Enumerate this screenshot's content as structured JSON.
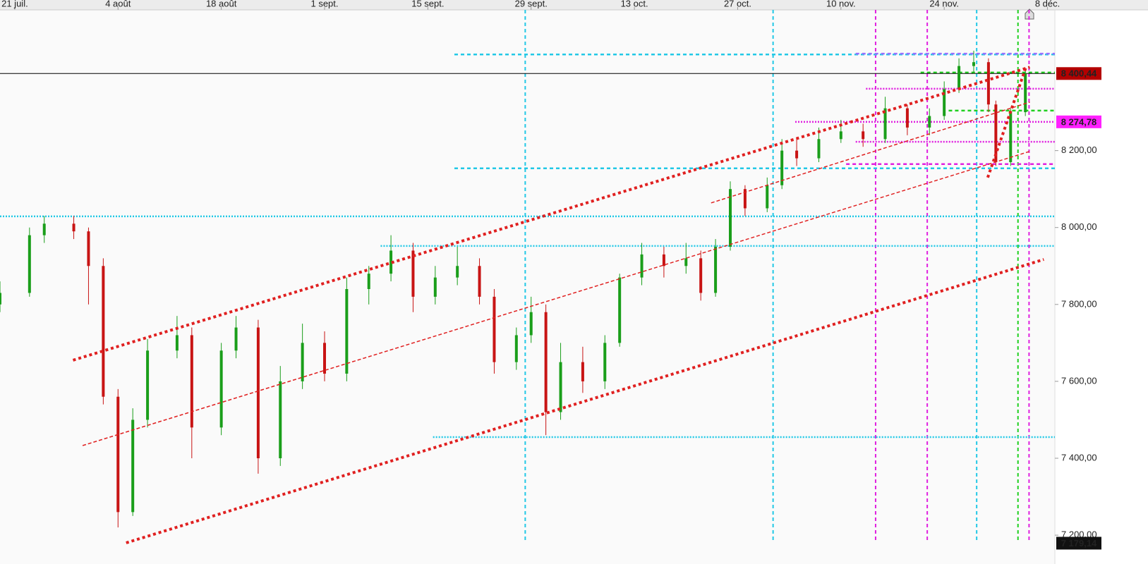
{
  "chart_data": {
    "type": "candlestick",
    "x": [
      -2,
      2,
      4,
      8,
      10,
      12,
      14,
      16,
      18,
      22,
      24,
      28,
      30,
      33,
      36,
      39,
      42,
      45,
      48,
      51,
      54,
      57,
      60,
      63,
      65,
      68,
      70,
      72,
      74,
      77,
      80,
      82,
      85,
      88,
      91,
      93,
      95,
      97,
      99,
      102,
      104,
      106,
      109,
      112,
      115,
      118,
      121,
      124,
      126,
      128,
      130,
      132,
      133,
      135,
      137
    ],
    "open": [
      7800,
      7830,
      7980,
      8010,
      7990,
      7900,
      7560,
      7260,
      7500,
      7680,
      7720,
      7480,
      7680,
      7740,
      7400,
      7600,
      7700,
      7620,
      7840,
      7880,
      7940,
      7820,
      7870,
      7900,
      7820,
      7650,
      7720,
      7780,
      7520,
      7650,
      7600,
      7700,
      7870,
      7930,
      7900,
      7920,
      7830,
      7950,
      8100,
      8050,
      8110,
      8200,
      8180,
      8230,
      8250,
      8230,
      8310,
      8260,
      8290,
      8360,
      8420,
      8430,
      8320,
      8170,
      8300
    ],
    "high": [
      7860,
      8000,
      8030,
      8030,
      8000,
      7920,
      7580,
      7530,
      7710,
      7770,
      7740,
      7700,
      7770,
      7760,
      7640,
      7750,
      7730,
      7870,
      7900,
      7980,
      7960,
      7900,
      7950,
      7920,
      7840,
      7740,
      7820,
      7800,
      7700,
      7690,
      7720,
      7880,
      7960,
      7950,
      7960,
      7940,
      7970,
      8120,
      8110,
      8130,
      8230,
      8230,
      8260,
      8280,
      8270,
      8340,
      8320,
      8310,
      8380,
      8440,
      8460,
      8440,
      8330,
      8310,
      8410
    ],
    "low": [
      7780,
      7820,
      7960,
      7970,
      7800,
      7540,
      7220,
      7250,
      7480,
      7660,
      7400,
      7460,
      7660,
      7360,
      7380,
      7580,
      7600,
      7600,
      7800,
      7860,
      7780,
      7800,
      7850,
      7800,
      7620,
      7630,
      7700,
      7460,
      7500,
      7570,
      7580,
      7690,
      7850,
      7870,
      7880,
      7810,
      7820,
      7940,
      8030,
      8040,
      8100,
      8160,
      8170,
      8220,
      8210,
      8220,
      8240,
      8240,
      8280,
      8350,
      8400,
      8300,
      8160,
      8160,
      8290
    ],
    "close": [
      7830,
      7980,
      8010,
      7990,
      7900,
      7560,
      7260,
      7500,
      7680,
      7720,
      7480,
      7680,
      7740,
      7400,
      7600,
      7700,
      7620,
      7840,
      7880,
      7940,
      7820,
      7870,
      7900,
      7820,
      7650,
      7720,
      7780,
      7520,
      7650,
      7600,
      7700,
      7870,
      7930,
      7900,
      7920,
      7830,
      7950,
      8100,
      8050,
      8110,
      8200,
      8180,
      8230,
      8250,
      8230,
      8310,
      8260,
      8290,
      8360,
      8420,
      8430,
      8320,
      8170,
      8300,
      8400
    ],
    "up_color": "#1a9e1a",
    "down_color": "#c81414",
    "xlim": [
      -2,
      141
    ],
    "ylim": [
      7180,
      8566
    ],
    "xticks": [
      {
        "value": 0,
        "label": "21 juil."
      },
      {
        "value": 14,
        "label": "4 août"
      },
      {
        "value": 28,
        "label": "18 août"
      },
      {
        "value": 42,
        "label": "1 sept."
      },
      {
        "value": 56,
        "label": "15 sept."
      },
      {
        "value": 70,
        "label": "29 sept."
      },
      {
        "value": 84,
        "label": "13 oct."
      },
      {
        "value": 98,
        "label": "27 oct."
      },
      {
        "value": 112,
        "label": "10 nov."
      },
      {
        "value": 126,
        "label": "24 nov."
      },
      {
        "value": 140,
        "label": "8 déc."
      }
    ],
    "yticks": [
      {
        "value": 8200,
        "label": "8 200,00"
      },
      {
        "value": 8000,
        "label": "8 000,00"
      },
      {
        "value": 7800,
        "label": "7 800,00"
      },
      {
        "value": 7600,
        "label": "7 600,00"
      },
      {
        "value": 7400,
        "label": "7 400,00"
      },
      {
        "value": 7200,
        "label": "7 200,00"
      }
    ],
    "hlines": [
      {
        "value": 8450,
        "from": 59.6,
        "color": "#22c8e6",
        "style": "dashed"
      },
      {
        "value": 8154,
        "from": 59.6,
        "color": "#22c8e6",
        "style": "dashed"
      },
      {
        "value": 8029,
        "from": -2,
        "color": "#22c8e6",
        "style": "dotted"
      },
      {
        "value": 7952,
        "from": 49.6,
        "color": "#22c8e6",
        "style": "dotted"
      },
      {
        "value": 7455,
        "from": 56.7,
        "color": "#22c8e6",
        "style": "dotted"
      },
      {
        "value": 8452,
        "from": 114,
        "color": "#9a70ff",
        "style": "dashed"
      },
      {
        "value": 8361,
        "from": 115.4,
        "color": "#e020e0",
        "style": "dotted"
      },
      {
        "value": 8274.78,
        "from": 105.8,
        "color": "#e020e0",
        "style": "dotted"
      },
      {
        "value": 8223,
        "from": 114,
        "color": "#e020e0",
        "style": "dotted"
      },
      {
        "value": 8165,
        "from": 112.7,
        "color": "#e020e0",
        "style": "dashed"
      },
      {
        "value": 8403,
        "from": 122.8,
        "color": "#20d020",
        "style": "dashed"
      },
      {
        "value": 8304,
        "from": 126.6,
        "color": "#20d020",
        "style": "dashed"
      },
      {
        "value": 8400.44,
        "from": -2,
        "color": "#000000",
        "style": "solid"
      }
    ],
    "vlines": [
      {
        "value": 69.2,
        "color": "#22c8e6"
      },
      {
        "value": 102.8,
        "color": "#22c8e6"
      },
      {
        "value": 130.4,
        "color": "#22c8e6"
      },
      {
        "value": 116.7,
        "color": "#e020e0"
      },
      {
        "value": 123.7,
        "color": "#e020e0"
      },
      {
        "value": 137.5,
        "color": "#e020e0"
      },
      {
        "value": 136,
        "color": "#20d020"
      }
    ],
    "trendlines": [
      {
        "x": [
          7.9,
          137.6
        ],
        "y": [
          7655,
          8417
        ],
        "color": "#e02020",
        "style": "thick"
      },
      {
        "x": [
          15.1,
          139.5
        ],
        "y": [
          7180,
          7917
        ],
        "color": "#e02020",
        "style": "thick"
      },
      {
        "x": [
          9.2,
          137.6
        ],
        "y": [
          7433,
          8198
        ],
        "color": "#e02020",
        "style": "thin"
      },
      {
        "x": [
          94.4,
          137.6
        ],
        "y": [
          8064,
          8326
        ],
        "color": "#e02020",
        "style": "thin"
      },
      {
        "x": [
          131.9,
          137.1
        ],
        "y": [
          8130,
          8418
        ],
        "color": "#e02020",
        "style": "thick"
      }
    ],
    "price_labels": [
      {
        "value": 8400.44,
        "label": "8 400,44",
        "color": "#b40000",
        "text_color": "#ffffff"
      },
      {
        "value": 8274.78,
        "label": "8 274,78",
        "color": "#ff20ff",
        "text_color": "#5a0060"
      },
      {
        "value": 7179.14,
        "label": "7 179,14",
        "color": "#111111",
        "text_color": "#ffffff"
      }
    ]
  }
}
